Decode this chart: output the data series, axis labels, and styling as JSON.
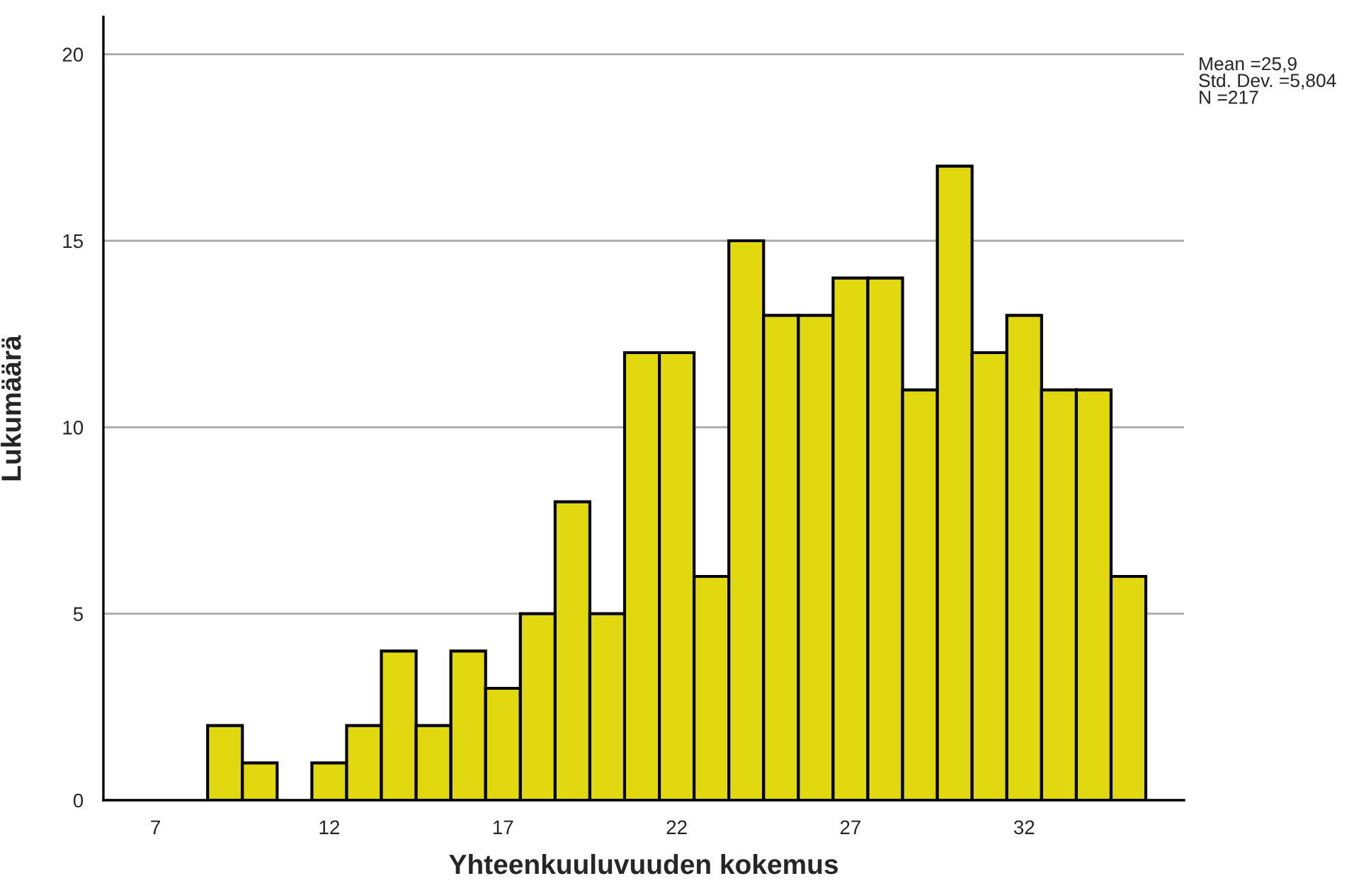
{
  "chart_data": {
    "type": "histogram",
    "xlabel": "Yhteenkuuluvuuden kokemus",
    "ylabel": "Lukumäärä",
    "bins": [
      8.5,
      9.5,
      10.5,
      11.5,
      12.5,
      13.5,
      14.5,
      15.5,
      16.5,
      17.5,
      18.5,
      19.5,
      20.5,
      21.5,
      22.5,
      23.5,
      24.5,
      25.5,
      26.5,
      27.5,
      28.5,
      29.5,
      30.5,
      31.5,
      32.5,
      33.5,
      34.5,
      35.5
    ],
    "values": [
      2,
      1,
      0,
      1,
      2,
      4,
      2,
      4,
      3,
      5,
      8,
      5,
      12,
      12,
      6,
      15,
      13,
      13,
      14,
      14,
      11,
      17,
      12,
      13,
      11,
      11,
      6
    ],
    "color": "#e2d80f",
    "xlim": [
      5.5,
      36.6
    ],
    "xticks": [
      7,
      12,
      17,
      22,
      27,
      32
    ],
    "ylim": [
      0,
      21
    ],
    "yticks": [
      0,
      5,
      10,
      15,
      20
    ],
    "grid": "y",
    "annotations": [
      "Mean =25,9\nStd. Dev. =5,804\nN =217"
    ]
  }
}
